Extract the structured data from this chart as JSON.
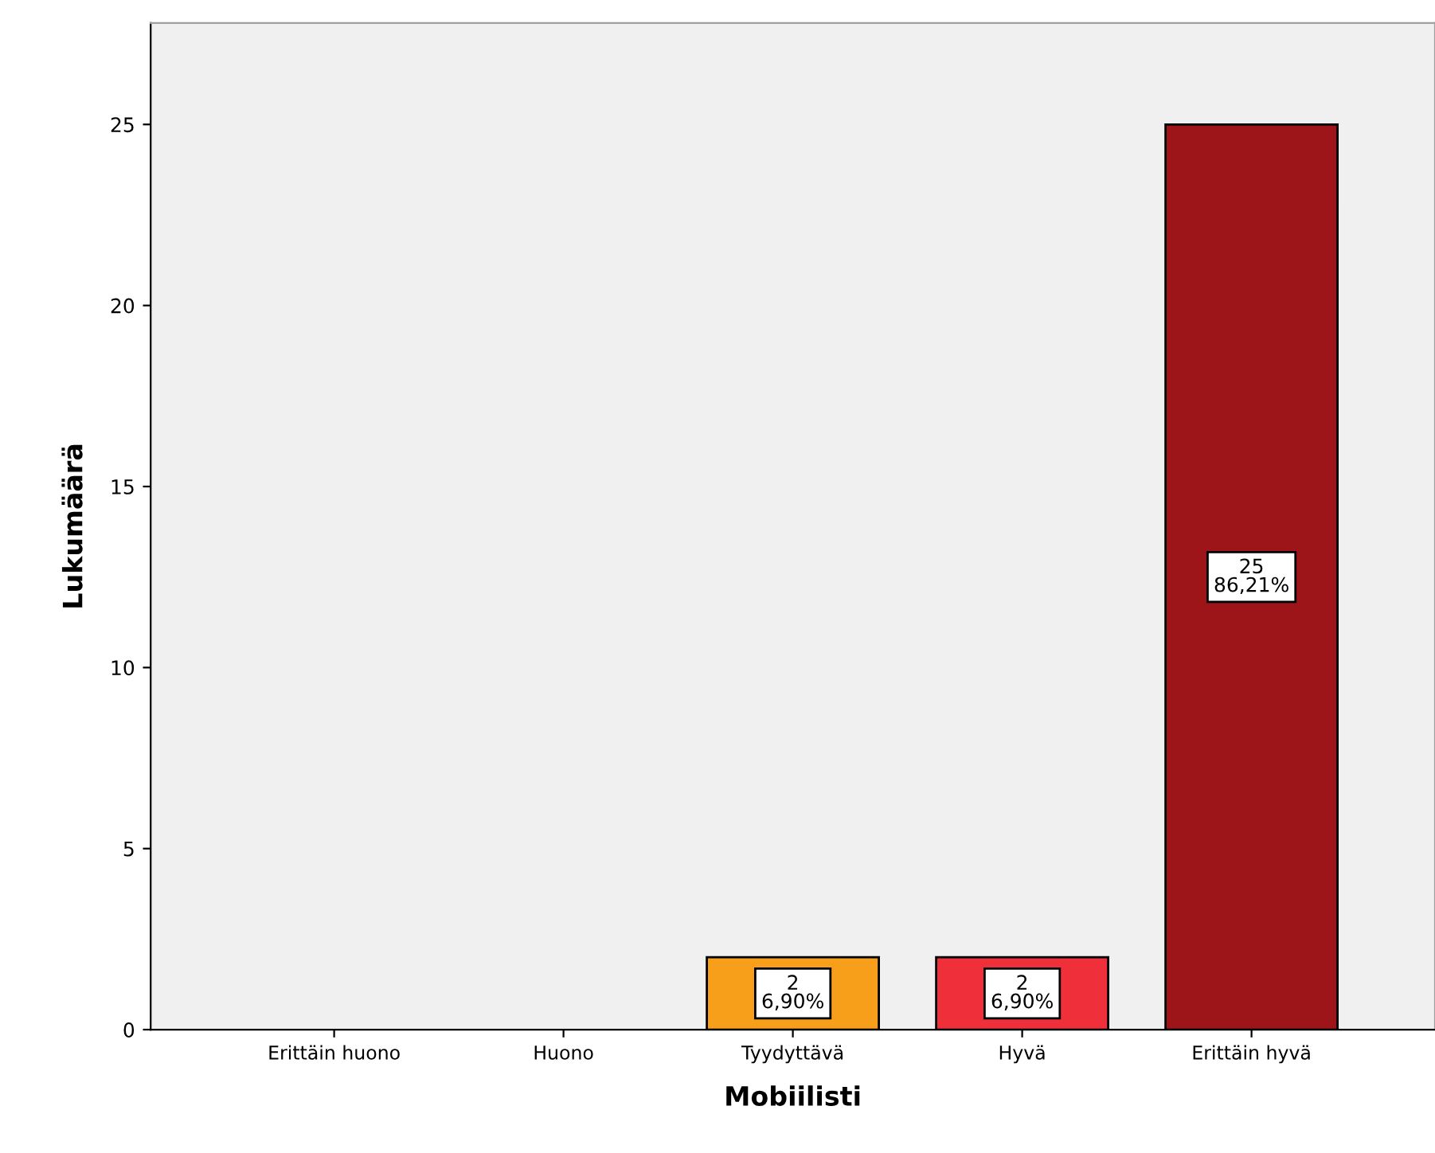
{
  "chart_data": {
    "type": "bar",
    "xlabel": "Mobiilisti",
    "ylabel": "Lukumäärä",
    "categories": [
      "Erittäin huono",
      "Huono",
      "Tyydyttävä",
      "Hyvä",
      "Erittäin hyvä"
    ],
    "values": [
      0,
      0,
      2,
      2,
      25
    ],
    "colors": [
      null,
      null,
      "#f79e1b",
      "#ef303b",
      "#9e1519"
    ],
    "value_labels": [
      null,
      null,
      "2\n6,90%",
      "2\n6,90%",
      "25\n86,21%"
    ],
    "ylim": [
      0,
      27.8
    ],
    "yticks": [
      0,
      5,
      10,
      15,
      20,
      25
    ],
    "grid": false,
    "legend": false
  }
}
